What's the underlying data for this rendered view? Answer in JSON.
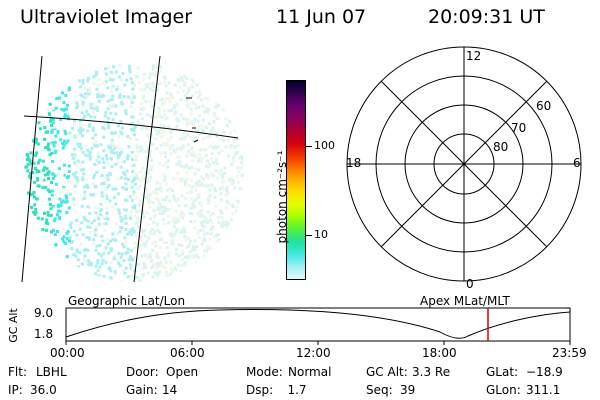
{
  "header": {
    "title": "Ultraviolet Imager",
    "date": "11 Jun 07",
    "time": "20:09:31 UT"
  },
  "colorbar": {
    "label": "photon cm⁻²s⁻¹",
    "ticks": [
      "100",
      "10"
    ],
    "colors": [
      "#000033",
      "#3a0050",
      "#6a0070",
      "#8a0060",
      "#b00030",
      "#d40010",
      "#f03000",
      "#ff7000",
      "#ffb000",
      "#ffe000",
      "#e0ff00",
      "#a0ff00",
      "#50f040",
      "#20e0a0",
      "#40e8e0",
      "#a0f0f0",
      "#e0f8f8"
    ]
  },
  "polar": {
    "labels": {
      "top": "12",
      "right": "6",
      "bottom": "0",
      "left": "18"
    },
    "rings": [
      "60",
      "70",
      "80"
    ]
  },
  "orbit": {
    "left_label": "Geographic Lat/Lon",
    "right_label": "Apex  MLat/MLT",
    "axis_title": "GC Alt",
    "y_ticks": [
      "9.0",
      "1.8"
    ],
    "x_ticks": [
      "00:00",
      "06:00",
      "12:00",
      "18:00",
      "23:59"
    ],
    "marker_color": "#e00000"
  },
  "info": {
    "row1": [
      {
        "k": "Flt:",
        "v": "LBHL"
      },
      {
        "k": "Door:",
        "v": "Open"
      },
      {
        "k": "Mode:",
        "v": "Normal"
      },
      {
        "k": "GC Alt:",
        "v": "3.3 Re"
      },
      {
        "k": "GLat:",
        "v": "−18.9"
      }
    ],
    "row2": [
      {
        "k": "IP:",
        "v": "36.0"
      },
      {
        "k": "Gain:",
        "v": "14"
      },
      {
        "k": "Dsp:",
        "v": "   1.7"
      },
      {
        "k": "Seq:",
        "v": "39"
      },
      {
        "k": "GLon:",
        "v": "311.1"
      }
    ]
  }
}
